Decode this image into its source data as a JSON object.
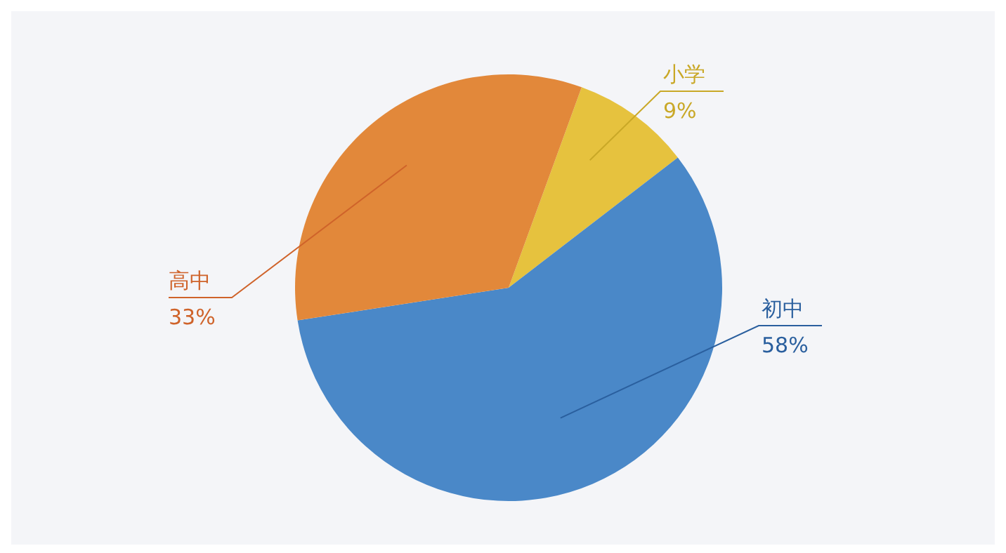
{
  "chart_data": {
    "type": "pie",
    "categories": [
      "小学",
      "初中",
      "高中"
    ],
    "values": [
      9,
      58,
      33
    ],
    "colors": [
      "#e6c23e",
      "#4a88c8",
      "#e2883a"
    ],
    "value_labels": [
      "9%",
      "58%",
      "33%"
    ]
  }
}
